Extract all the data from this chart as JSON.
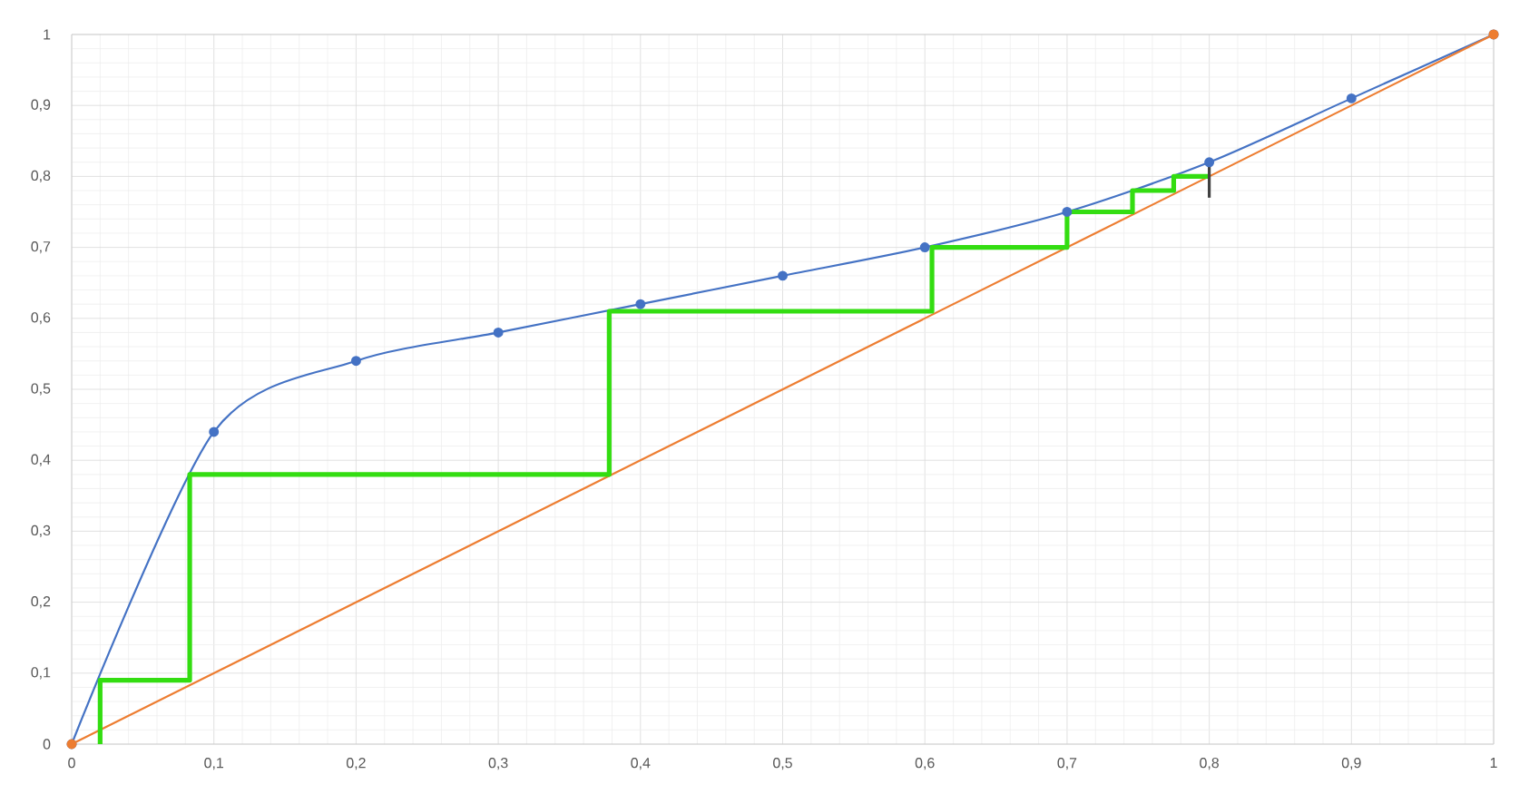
{
  "chart_data": {
    "type": "line",
    "series": [
      {
        "color": "#4472c4",
        "marker": "circle",
        "x": [
          0,
          0.1,
          0.2,
          0.3,
          0.4,
          0.5,
          0.6,
          0.7,
          0.8,
          0.9,
          1
        ],
        "values": [
          0,
          0.44,
          0.54,
          0.58,
          0.62,
          0.66,
          0.7,
          0.75,
          0.82,
          0.91,
          1
        ]
      },
      {
        "color": "#ed7d31",
        "marker": "circle",
        "x": [
          0,
          1
        ],
        "values": [
          0,
          1
        ]
      },
      {
        "type": "step",
        "color": "#33dd11",
        "marker": "none",
        "x": [
          0.02,
          0.02,
          0.083,
          0.083,
          0.378,
          0.378,
          0.605,
          0.605,
          0.7,
          0.7,
          0.746,
          0.746,
          0.775,
          0.775,
          0.8
        ],
        "values": [
          0,
          0.09,
          0.09,
          0.38,
          0.38,
          0.61,
          0.61,
          0.7,
          0.7,
          0.75,
          0.75,
          0.78,
          0.78,
          0.8,
          0.8
        ]
      },
      {
        "color": "#404040",
        "marker": "none",
        "x": [
          0.8,
          0.8
        ],
        "values": [
          0.77,
          0.82
        ]
      }
    ],
    "xlim": [
      0,
      1
    ],
    "ylim": [
      0,
      1
    ],
    "xticks": [
      0,
      {
        "value": 0.1,
        "label": "0,1"
      },
      {
        "value": 0.2,
        "label": "0,2"
      },
      {
        "value": 0.3,
        "label": "0,3"
      },
      {
        "value": 0.4,
        "label": "0,4"
      },
      {
        "value": 0.5,
        "label": "0,5"
      },
      {
        "value": 0.6,
        "label": "0,6"
      },
      {
        "value": 0.7,
        "label": "0,7"
      },
      {
        "value": 0.8,
        "label": "0,8"
      },
      {
        "value": 0.9,
        "label": "0,9"
      },
      1
    ],
    "yticks": [
      0,
      {
        "value": 0.1,
        "label": "0,1"
      },
      {
        "value": 0.2,
        "label": "0,2"
      },
      {
        "value": 0.3,
        "label": "0,3"
      },
      {
        "value": 0.4,
        "label": "0,4"
      },
      {
        "value": 0.5,
        "label": "0,5"
      },
      {
        "value": 0.6,
        "label": "0,6"
      },
      {
        "value": 0.7,
        "label": "0,7"
      },
      {
        "value": 0.8,
        "label": "0,8"
      },
      {
        "value": 0.9,
        "label": "0,9"
      },
      1
    ],
    "grid": true,
    "line_style": "solid"
  }
}
